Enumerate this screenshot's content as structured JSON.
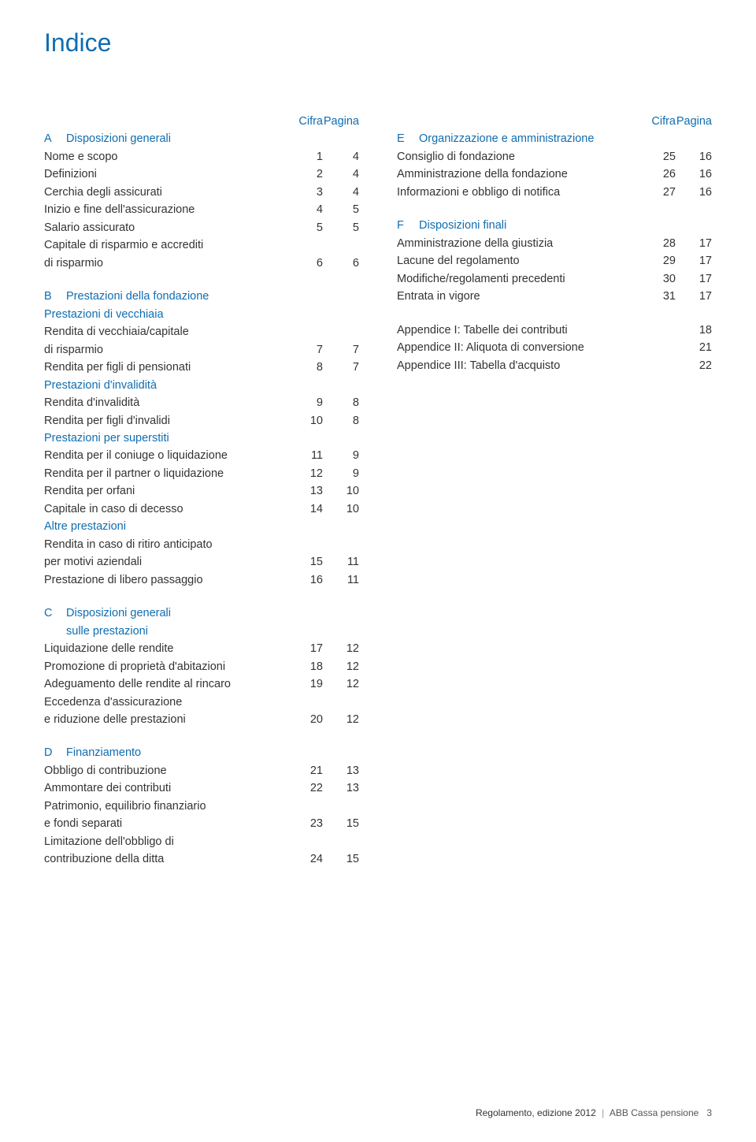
{
  "title": "Indice",
  "headers": {
    "cifra": "Cifra",
    "pagina": "Pagina"
  },
  "left": [
    {
      "type": "header"
    },
    {
      "type": "section",
      "letter": "A",
      "label": "Disposizioni generali"
    },
    {
      "label": "Nome e scopo",
      "cifra": "1",
      "pagina": "4"
    },
    {
      "label": "Definizioni",
      "cifra": "2",
      "pagina": "4"
    },
    {
      "label": "Cerchia degli assicurati",
      "cifra": "3",
      "pagina": "4"
    },
    {
      "label": "Inizio e fine dell'assicurazione",
      "cifra": "4",
      "pagina": "5"
    },
    {
      "label": "Salario assicurato",
      "cifra": "5",
      "pagina": "5"
    },
    {
      "label": "Capitale di risparmio e accrediti"
    },
    {
      "label": "di risparmio",
      "cifra": "6",
      "pagina": "6"
    },
    {
      "type": "section",
      "letter": "B",
      "label": "Prestazioni della fondazione",
      "gap": true
    },
    {
      "type": "sub",
      "label": "Prestazioni di vecchiaia"
    },
    {
      "label": "Rendita di vecchiaia/capitale"
    },
    {
      "label": "di risparmio",
      "cifra": "7",
      "pagina": "7"
    },
    {
      "label": "Rendita per figli di pensionati",
      "cifra": "8",
      "pagina": "7"
    },
    {
      "type": "sub",
      "label": "Prestazioni d'invalidità"
    },
    {
      "label": "Rendita d'invalidità",
      "cifra": "9",
      "pagina": "8"
    },
    {
      "label": "Rendita per figli d'invalidi",
      "cifra": "10",
      "pagina": "8"
    },
    {
      "type": "sub",
      "label": "Prestazioni per superstiti"
    },
    {
      "label": "Rendita per il coniuge o liquidazione",
      "cifra": "11",
      "pagina": "9"
    },
    {
      "label": "Rendita per il partner o liquidazione",
      "cifra": "12",
      "pagina": "9"
    },
    {
      "label": "Rendita per orfani",
      "cifra": "13",
      "pagina": "10"
    },
    {
      "label": "Capitale in caso di decesso",
      "cifra": "14",
      "pagina": "10"
    },
    {
      "type": "sub",
      "label": "Altre prestazioni"
    },
    {
      "label": "Rendita in caso di ritiro anticipato"
    },
    {
      "label": "per motivi aziendali",
      "cifra": "15",
      "pagina": "11"
    },
    {
      "label": "Prestazione di libero passaggio",
      "cifra": "16",
      "pagina": "11"
    },
    {
      "type": "section",
      "letter": "C",
      "label": "Disposizioni generali",
      "gap": true
    },
    {
      "type": "sub",
      "label": "sulle prestazioni",
      "indent": true
    },
    {
      "label": "Liquidazione delle rendite",
      "cifra": "17",
      "pagina": "12"
    },
    {
      "label": "Promozione di proprietà d'abitazioni",
      "cifra": "18",
      "pagina": "12"
    },
    {
      "label": "Adeguamento delle rendite al rincaro",
      "cifra": "19",
      "pagina": "12"
    },
    {
      "label": "Eccedenza d'assicurazione"
    },
    {
      "label": "e riduzione delle prestazioni",
      "cifra": "20",
      "pagina": "12"
    },
    {
      "type": "section",
      "letter": "D",
      "label": "Finanziamento",
      "gap": true
    },
    {
      "label": "Obbligo di contribuzione",
      "cifra": "21",
      "pagina": "13"
    },
    {
      "label": "Ammontare dei contributi",
      "cifra": "22",
      "pagina": "13"
    },
    {
      "label": "Patrimonio, equilibrio finanziario"
    },
    {
      "label": "e fondi separati",
      "cifra": "23",
      "pagina": "15"
    },
    {
      "label": "Limitazione dell'obbligo di"
    },
    {
      "label": "contribuzione della ditta",
      "cifra": "24",
      "pagina": "15"
    }
  ],
  "right": [
    {
      "type": "header"
    },
    {
      "type": "section",
      "letter": "E",
      "label": "Organizzazione e amministrazione"
    },
    {
      "label": "Consiglio di fondazione",
      "cifra": "25",
      "pagina": "16"
    },
    {
      "label": "Amministrazione della fondazione",
      "cifra": "26",
      "pagina": "16"
    },
    {
      "label": "Informazioni e obbligo di notifica",
      "cifra": "27",
      "pagina": "16"
    },
    {
      "type": "section",
      "letter": "F",
      "label": "Disposizioni finali",
      "gap": true
    },
    {
      "label": "Amministrazione della giustizia",
      "cifra": "28",
      "pagina": "17"
    },
    {
      "label": "Lacune del regolamento",
      "cifra": "29",
      "pagina": "17"
    },
    {
      "label": "Modifiche/regolamenti precedenti",
      "cifra": "30",
      "pagina": "17"
    },
    {
      "label": "Entrata in vigore",
      "cifra": "31",
      "pagina": "17"
    },
    {
      "label": "Appendice I: Tabelle dei contributi",
      "pagina": "18",
      "gap": true
    },
    {
      "label": "Appendice II: Aliquota di conversione",
      "pagina": "21"
    },
    {
      "label": "Appendice III: Tabella d'acquisto",
      "pagina": "22"
    }
  ],
  "footer": {
    "left": "Regolamento, edizione 2012",
    "right": "ABB Cassa pensione",
    "page": "3"
  },
  "colors": {
    "accent": "#0f6db1",
    "text": "#333333",
    "background": "#ffffff"
  }
}
